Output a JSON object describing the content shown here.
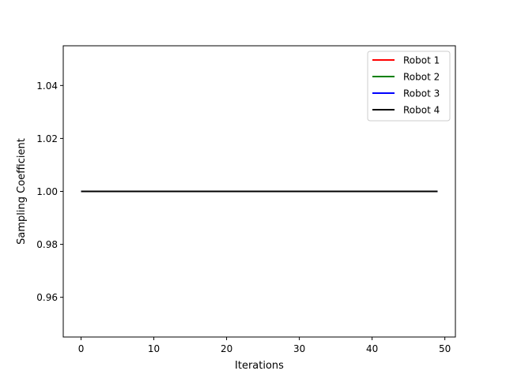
{
  "chart_data": {
    "type": "line",
    "title": "",
    "xlabel": "Iterations",
    "ylabel": "Sampling Coefficient",
    "xlim": [
      -2.45,
      51.45
    ],
    "ylim": [
      0.945,
      1.055
    ],
    "xticks": [
      0,
      10,
      20,
      30,
      40,
      50
    ],
    "xtick_labels": [
      "0",
      "10",
      "20",
      "30",
      "40",
      "50"
    ],
    "yticks": [
      0.96,
      0.98,
      1.0,
      1.02,
      1.04
    ],
    "ytick_labels": [
      "0.96",
      "0.98",
      "1.00",
      "1.02",
      "1.04"
    ],
    "grid": false,
    "legend_position": "top-right",
    "x": [
      0,
      49
    ],
    "series": [
      {
        "name": "Robot 1",
        "color": "#ff0000",
        "values": [
          1.0,
          1.0
        ]
      },
      {
        "name": "Robot 2",
        "color": "#008000",
        "values": [
          1.0,
          1.0
        ]
      },
      {
        "name": "Robot 3",
        "color": "#0000ff",
        "values": [
          1.0,
          1.0
        ]
      },
      {
        "name": "Robot 4",
        "color": "#000000",
        "values": [
          1.0,
          1.0
        ]
      }
    ]
  }
}
